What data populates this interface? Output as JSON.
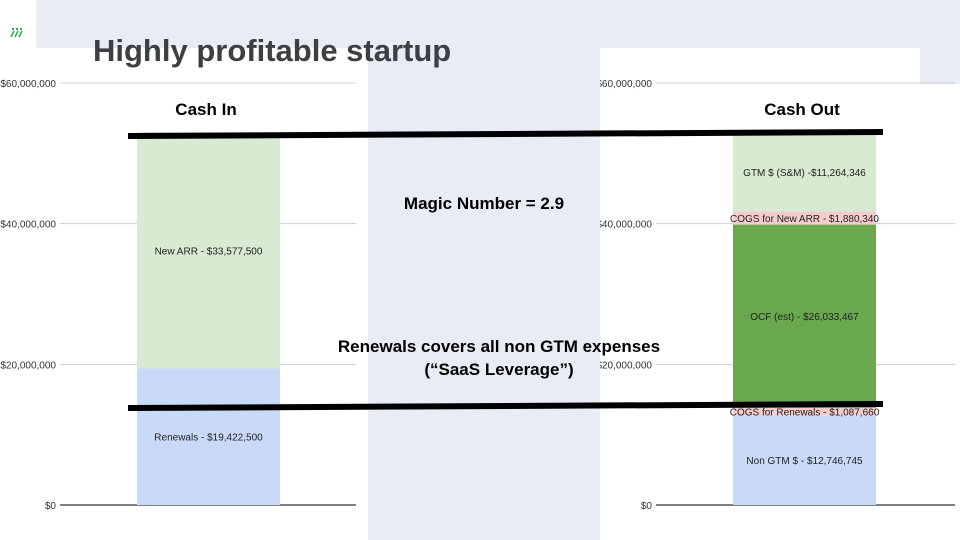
{
  "slide": {
    "title": "Highly profitable startup",
    "magic_number": "Magic Number = 2.9",
    "renewals_note_line1": "Renewals covers all non GTM expenses",
    "renewals_note_line2": "(“SaaS Leverage”)"
  },
  "colors": {
    "light_green": "#d9ead3",
    "light_blue": "#c9daf8",
    "light_red": "#f4cccc",
    "dark_green": "#6aa84f",
    "logo_green": "#34a853"
  },
  "chart_data": [
    {
      "type": "bar",
      "stacked": true,
      "title": "Cash In",
      "ylim": [
        0,
        60000000
      ],
      "yticks": [
        0,
        20000000,
        40000000,
        60000000
      ],
      "ytick_labels": [
        "$0",
        "$20,000,000",
        "$40,000,000",
        "$60,000,000"
      ],
      "grid": true,
      "segments": [
        {
          "label": "Renewals - $19,422,500",
          "value": 19422500,
          "color": "#c9daf8"
        },
        {
          "label": "New ARR - $33,577,500",
          "value": 33577500,
          "color": "#d9ead3"
        }
      ]
    },
    {
      "type": "bar",
      "stacked": true,
      "title": "Cash Out",
      "ylim": [
        0,
        60000000
      ],
      "yticks": [
        0,
        20000000,
        40000000,
        60000000
      ],
      "ytick_labels": [
        "$0",
        "$20,000,000",
        "$40,000,000",
        "$60,000,000"
      ],
      "grid": true,
      "segments": [
        {
          "label": "Non GTM $ - $12,746,745",
          "value": 12746745,
          "color": "#c9daf8"
        },
        {
          "label": "COGS for Renewals - $1,087,660",
          "value": 1087660,
          "color": "#f4cccc"
        },
        {
          "label": "OCF (est) - $26,033,467",
          "value": 26033467,
          "color": "#6aa84f"
        },
        {
          "label": "COGS for New ARR - $1,880,340",
          "value": 1880340,
          "color": "#f4cccc"
        },
        {
          "label": "GTM $ (S&M) -$11,264,346",
          "value": 11264346,
          "color": "#d9ead3"
        }
      ]
    }
  ]
}
